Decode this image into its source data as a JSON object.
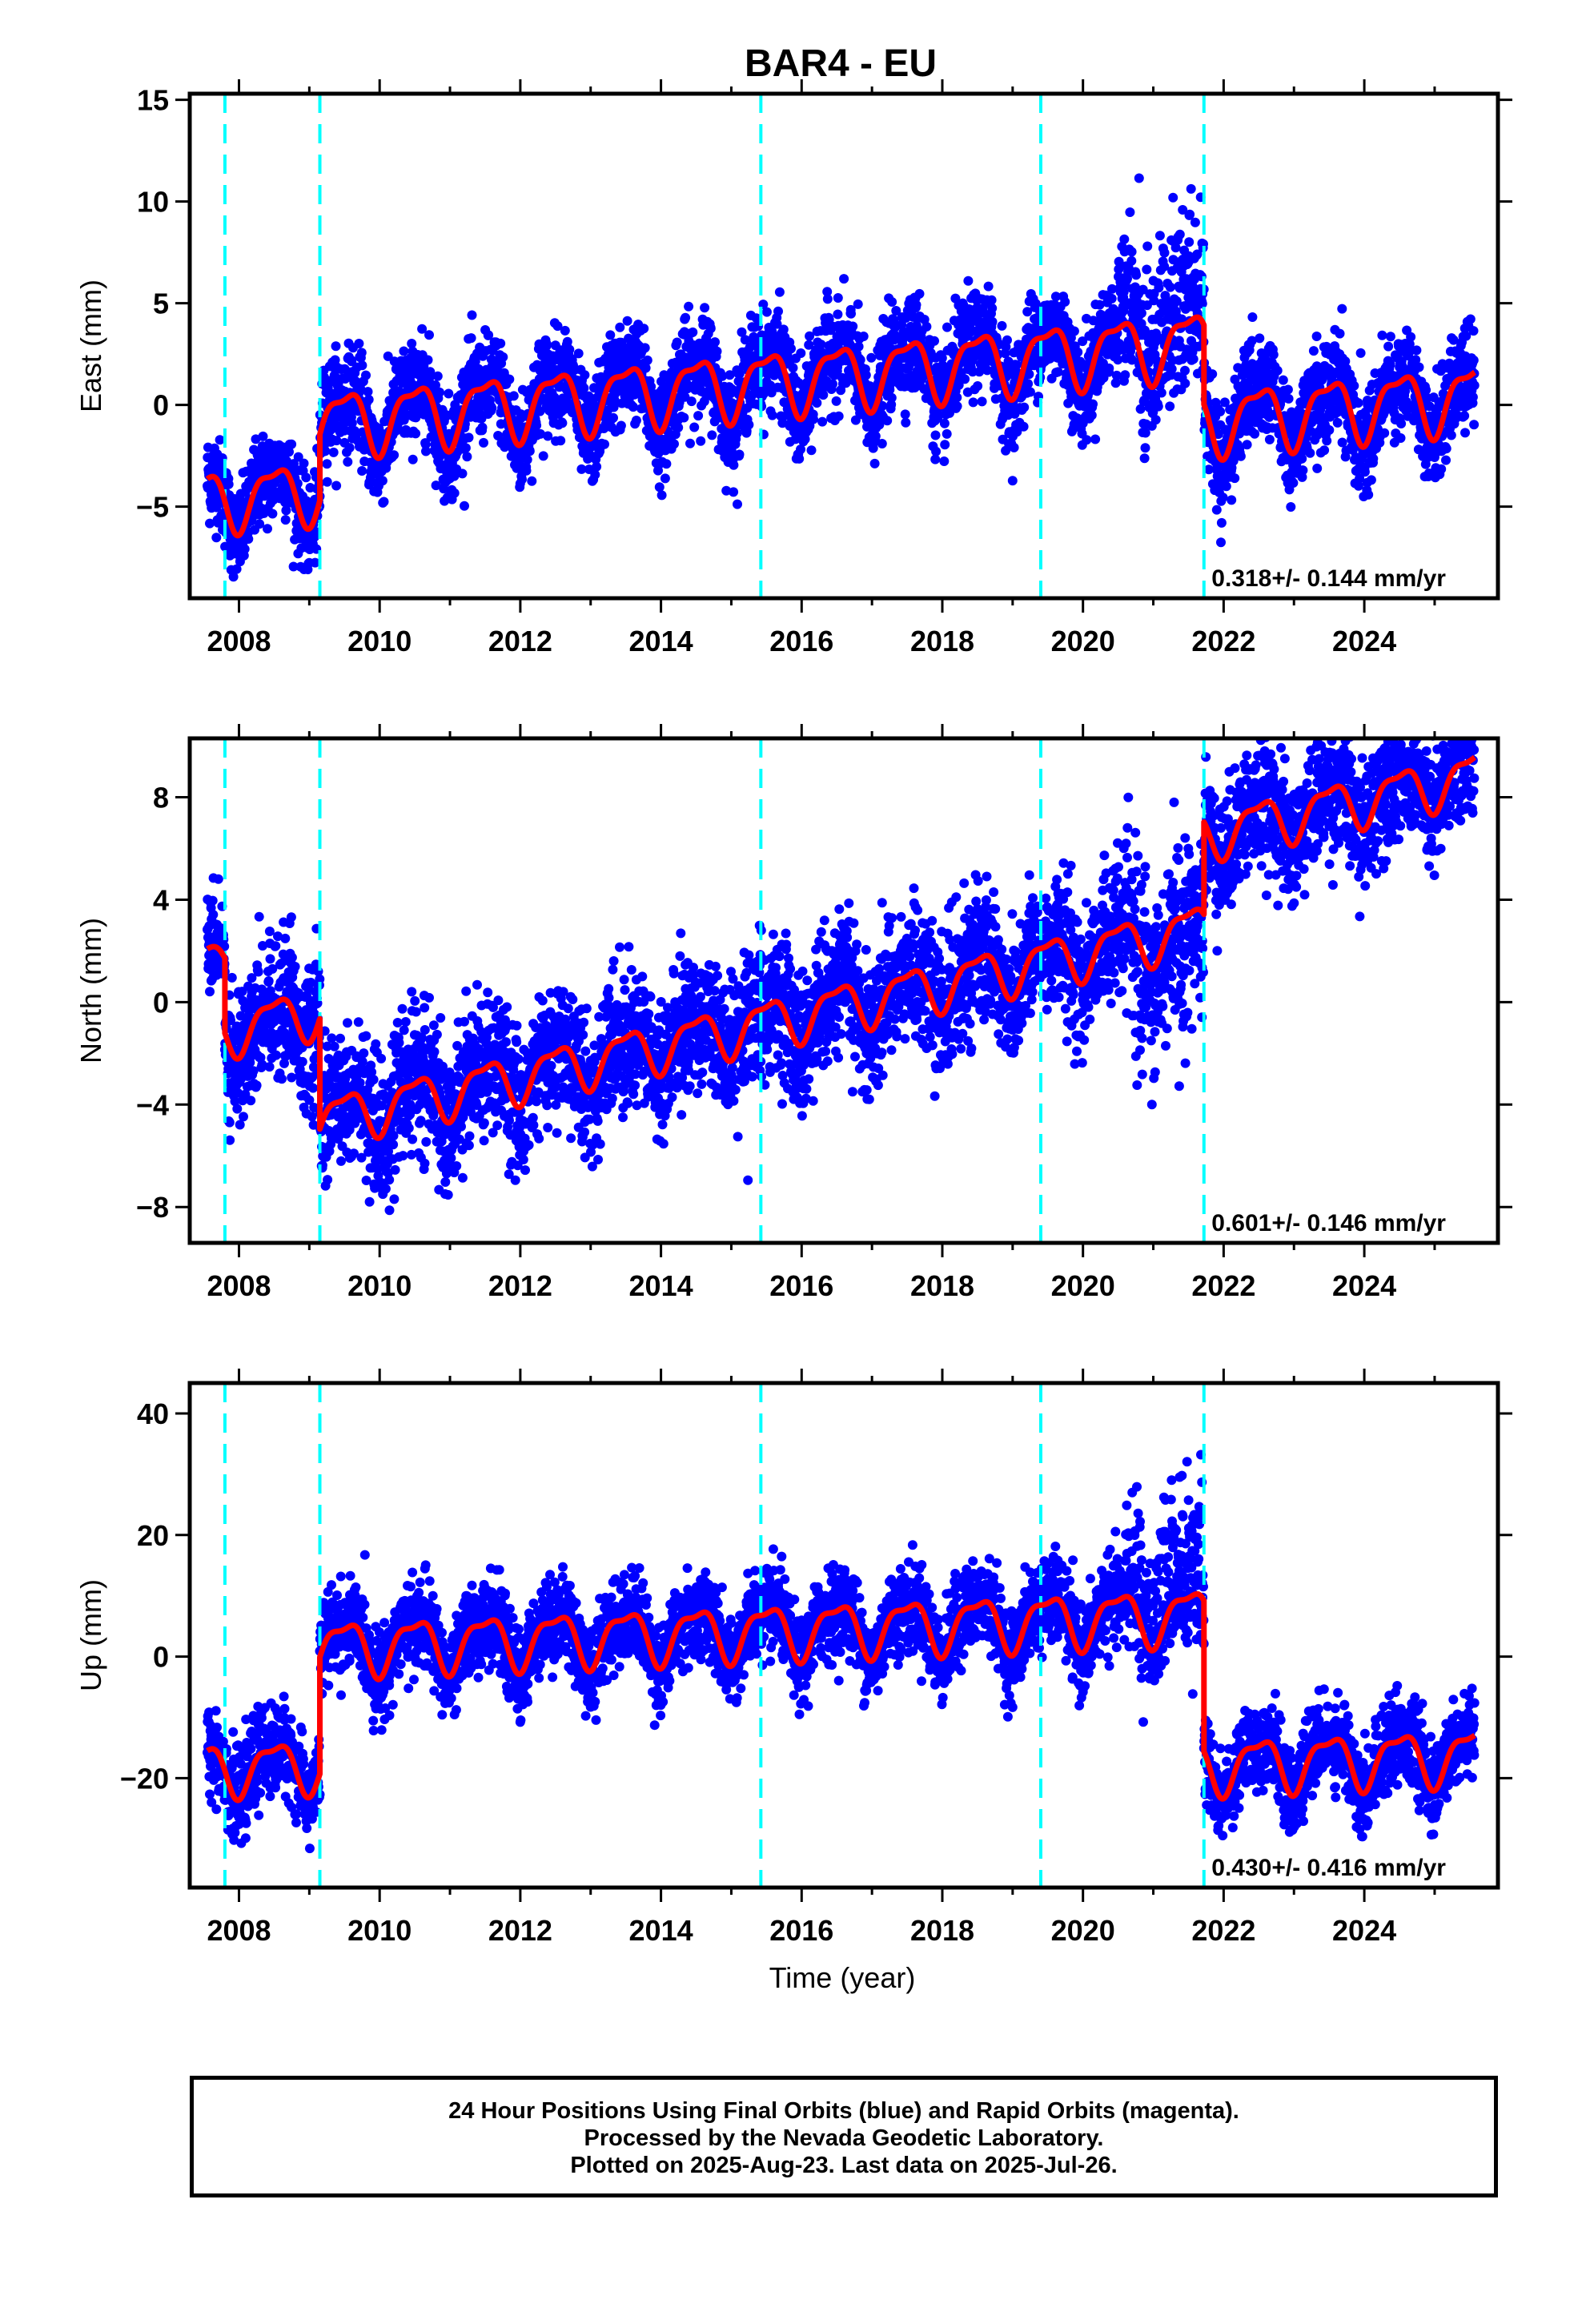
{
  "title": "BAR4 - EU",
  "xlabel": "Time (year)",
  "footer": {
    "line1": "24 Hour Positions Using Final Orbits (blue) and Rapid Orbits (magenta).",
    "line2": "Processed by the Nevada Geodetic Laboratory.",
    "line3": "Plotted on 2025-Aug-23. Last data on 2025-Jul-26."
  },
  "colors": {
    "points": "#0000ff",
    "model": "#ff0000",
    "events": "#00ffff",
    "frame": "#000000"
  },
  "chart_data": [
    {
      "type": "scatter",
      "component": "East",
      "ylabel": "East (mm)",
      "rate_label": "0.318+/- 0.144 mm/yr",
      "xlim": [
        2007.3,
        2025.9
      ],
      "ylim": [
        -9.5,
        15.3
      ],
      "yticks": [
        15,
        10,
        5,
        0,
        -5
      ],
      "yticklabels": [
        "15",
        "10",
        "5",
        "0",
        "−5"
      ],
      "xticks": [
        2008,
        2010,
        2012,
        2014,
        2016,
        2018,
        2020,
        2022,
        2024
      ],
      "xticklabels": [
        "2008",
        "2010",
        "2012",
        "2014",
        "2016",
        "2018",
        "2020",
        "2022",
        "2024"
      ],
      "events": [
        2007.8,
        2009.15,
        2015.42,
        2019.4,
        2021.72
      ],
      "segments": [
        {
          "start": 2007.55,
          "end": 2009.15,
          "offset": -4.7,
          "rate": 0.318,
          "amp": 1.4,
          "noise": 1.1
        },
        {
          "start": 2009.15,
          "end": 2021.72,
          "offset": -1.4,
          "rate": 0.318,
          "amp": 1.5,
          "noise": 1.2
        },
        {
          "start": 2021.72,
          "end": 2025.57,
          "offset": -5.3,
          "rate": 0.318,
          "amp": 1.5,
          "noise": 1.2
        }
      ],
      "outlier_windows": [
        {
          "start": 2020.5,
          "end": 2021.72,
          "shift": 3.5,
          "spread": 4.5
        }
      ]
    },
    {
      "type": "scatter",
      "component": "North",
      "ylabel": "North (mm)",
      "rate_label": "0.601+/- 0.146 mm/yr",
      "xlim": [
        2007.3,
        2025.9
      ],
      "ylim": [
        -9.4,
        10.3
      ],
      "yticks": [
        8,
        4,
        0,
        -4,
        -8
      ],
      "yticklabels": [
        "8",
        "4",
        "0",
        "−4",
        "−8"
      ],
      "xticks": [
        2008,
        2010,
        2012,
        2014,
        2016,
        2018,
        2020,
        2022,
        2024
      ],
      "xticklabels": [
        "2008",
        "2010",
        "2012",
        "2014",
        "2016",
        "2018",
        "2020",
        "2022",
        "2024"
      ],
      "events": [
        2007.8,
        2009.15,
        2015.42,
        2019.4,
        2021.72
      ],
      "segments": [
        {
          "start": 2007.55,
          "end": 2007.8,
          "offset": 1.6,
          "rate": 0.601,
          "amp": 0.6,
          "noise": 1.0
        },
        {
          "start": 2007.8,
          "end": 2009.15,
          "offset": -1.3,
          "rate": 0.601,
          "amp": 0.9,
          "noise": 1.3
        },
        {
          "start": 2009.15,
          "end": 2021.72,
          "offset": -5.6,
          "rate": 0.601,
          "amp": 0.9,
          "noise": 1.3
        },
        {
          "start": 2021.72,
          "end": 2025.57,
          "offset": -2.0,
          "rate": 0.601,
          "amp": 0.9,
          "noise": 1.2
        }
      ],
      "outlier_windows": [
        {
          "start": 2020.7,
          "end": 2021.72,
          "shift": -2.5,
          "spread": 2.5
        }
      ]
    },
    {
      "type": "scatter",
      "component": "Up",
      "ylabel": "Up (mm)",
      "rate_label": "0.430+/- 0.416 mm/yr",
      "xlim": [
        2007.3,
        2025.9
      ],
      "ylim": [
        -38,
        45
      ],
      "yticks": [
        40,
        20,
        0,
        -20
      ],
      "yticklabels": [
        "40",
        "20",
        "0",
        "−20"
      ],
      "xticks": [
        2008,
        2010,
        2012,
        2014,
        2016,
        2018,
        2020,
        2022,
        2024
      ],
      "xticklabels": [
        "2008",
        "2010",
        "2012",
        "2014",
        "2016",
        "2018",
        "2020",
        "2022",
        "2024"
      ],
      "events": [
        2007.8,
        2009.15,
        2015.42,
        2019.4,
        2021.72
      ],
      "segments": [
        {
          "start": 2007.55,
          "end": 2009.15,
          "offset": -18.5,
          "rate": 0.43,
          "amp": 4.0,
          "noise": 3.5
        },
        {
          "start": 2009.15,
          "end": 2021.72,
          "offset": 0.8,
          "rate": 0.43,
          "amp": 4.2,
          "noise": 3.5
        },
        {
          "start": 2021.72,
          "end": 2025.57,
          "offset": -24.0,
          "rate": 0.43,
          "amp": 4.2,
          "noise": 3.4
        }
      ],
      "outlier_windows": [
        {
          "start": 2020.6,
          "end": 2021.72,
          "shift": 12.0,
          "spread": 12.0
        }
      ]
    }
  ]
}
